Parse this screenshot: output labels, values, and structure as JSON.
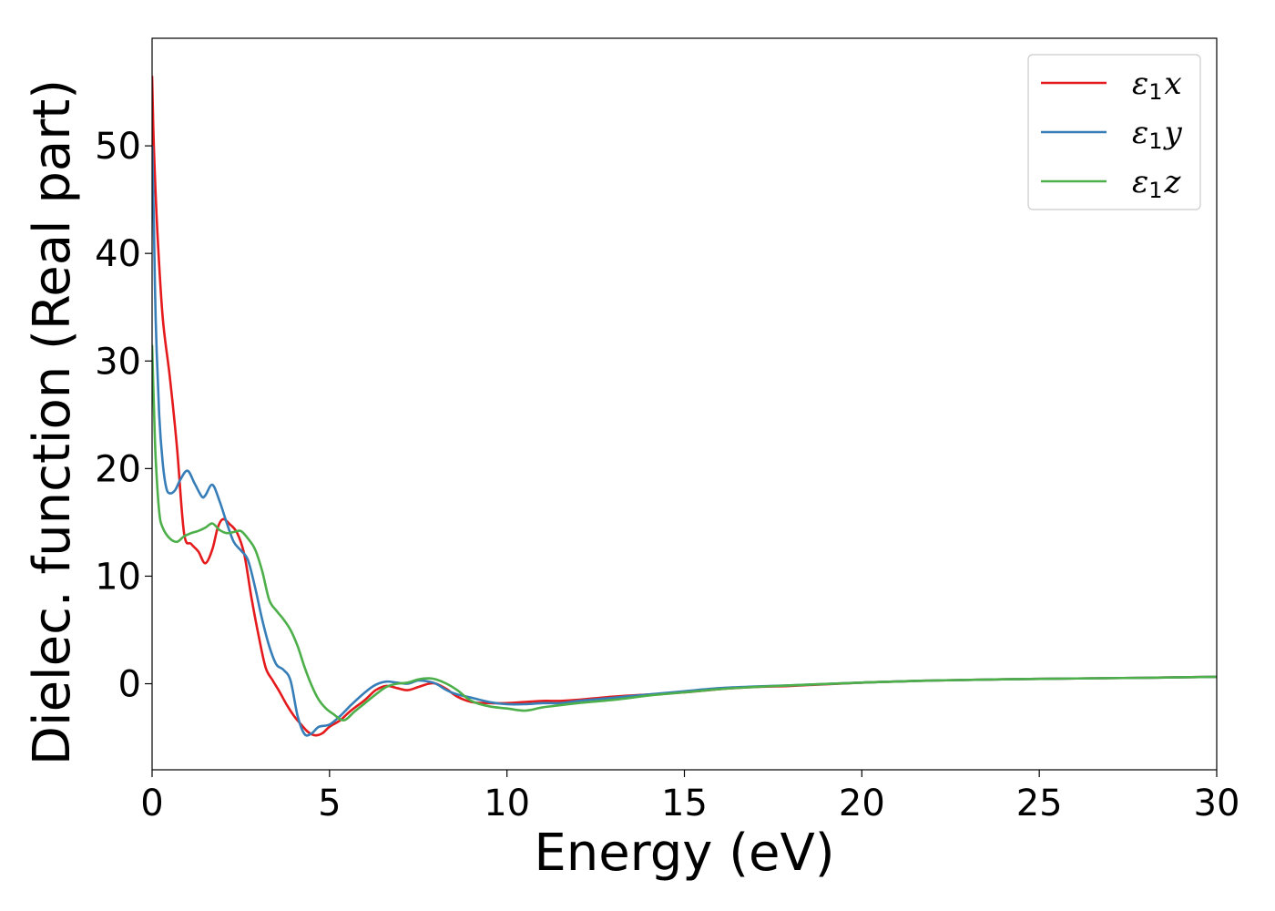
{
  "chart_data": {
    "type": "line",
    "xlabel": "Energy (eV)",
    "ylabel": "Dielec. function (Real part)",
    "xlim": [
      0,
      30
    ],
    "ylim": [
      -8,
      60
    ],
    "xticks": [
      0,
      5,
      10,
      15,
      20,
      25,
      30
    ],
    "yticks": [
      0,
      10,
      20,
      30,
      40,
      50
    ],
    "grid": false,
    "legend_position": "top-right",
    "series": [
      {
        "name": "ε1x",
        "legend_symbol": "ε",
        "legend_sub": "1",
        "legend_var": "x",
        "color": "#e41a1c",
        "x": [
          0.0,
          0.05,
          0.15,
          0.3,
          0.5,
          0.7,
          0.9,
          1.1,
          1.3,
          1.5,
          1.7,
          1.85,
          2.0,
          2.2,
          2.4,
          2.6,
          2.8,
          3.0,
          3.2,
          3.4,
          3.6,
          3.8,
          4.0,
          4.2,
          4.4,
          4.6,
          4.8,
          5.0,
          5.3,
          5.6,
          6.0,
          6.3,
          6.6,
          6.9,
          7.2,
          7.5,
          7.8,
          8.0,
          8.3,
          8.6,
          9.0,
          9.5,
          10.0,
          10.5,
          11.0,
          11.5,
          12.0,
          13.0,
          14.0,
          15.0,
          16.0,
          17.0,
          18.0,
          20.0,
          22.0,
          25.0,
          28.0,
          30.0
        ],
        "values": [
          56.5,
          50.0,
          42.0,
          34.0,
          28.5,
          22.0,
          14.0,
          13.0,
          12.3,
          11.2,
          12.5,
          14.5,
          15.3,
          14.8,
          14.0,
          12.0,
          8.0,
          4.5,
          1.5,
          0.3,
          -0.8,
          -2.0,
          -3.0,
          -3.8,
          -4.5,
          -4.8,
          -4.6,
          -4.0,
          -3.4,
          -2.5,
          -1.5,
          -0.6,
          -0.2,
          -0.4,
          -0.6,
          -0.3,
          0.0,
          0.0,
          -0.5,
          -1.2,
          -1.7,
          -1.8,
          -1.8,
          -1.7,
          -1.6,
          -1.6,
          -1.5,
          -1.2,
          -1.0,
          -0.8,
          -0.5,
          -0.3,
          -0.2,
          0.1,
          0.3,
          0.45,
          0.55,
          0.65
        ]
      },
      {
        "name": "ε1y",
        "legend_symbol": "ε",
        "legend_sub": "1",
        "legend_var": "y",
        "color": "#377eb8",
        "x": [
          0.0,
          0.05,
          0.1,
          0.2,
          0.3,
          0.4,
          0.5,
          0.65,
          0.8,
          1.0,
          1.2,
          1.4,
          1.5,
          1.7,
          1.9,
          2.1,
          2.3,
          2.5,
          2.7,
          2.9,
          3.1,
          3.3,
          3.5,
          3.7,
          3.9,
          4.1,
          4.3,
          4.5,
          4.7,
          5.0,
          5.3,
          5.6,
          6.0,
          6.3,
          6.6,
          6.9,
          7.2,
          7.5,
          7.8,
          8.0,
          8.3,
          8.6,
          9.0,
          9.5,
          10.0,
          10.5,
          11.0,
          11.5,
          12.0,
          13.0,
          14.0,
          15.0,
          16.0,
          17.0,
          18.0,
          20.0,
          22.0,
          25.0,
          28.0,
          30.0
        ],
        "values": [
          50.0,
          43.0,
          34.0,
          25.0,
          20.5,
          18.2,
          17.7,
          18.0,
          19.0,
          19.8,
          18.6,
          17.4,
          17.5,
          18.5,
          17.0,
          15.0,
          13.2,
          12.4,
          11.5,
          9.0,
          6.0,
          3.5,
          1.8,
          1.3,
          0.3,
          -3.0,
          -4.7,
          -4.6,
          -4.0,
          -3.8,
          -3.0,
          -2.0,
          -0.8,
          -0.1,
          0.2,
          0.1,
          0.0,
          0.3,
          0.2,
          0.0,
          -0.6,
          -1.0,
          -1.3,
          -1.7,
          -1.9,
          -1.9,
          -1.8,
          -1.8,
          -1.6,
          -1.3,
          -1.0,
          -0.7,
          -0.4,
          -0.25,
          -0.15,
          0.1,
          0.3,
          0.45,
          0.55,
          0.65
        ]
      },
      {
        "name": "ε1z",
        "legend_symbol": "ε",
        "legend_sub": "1",
        "legend_var": "z",
        "color": "#4daf4a",
        "x": [
          0.0,
          0.05,
          0.1,
          0.2,
          0.3,
          0.5,
          0.7,
          0.9,
          1.1,
          1.3,
          1.5,
          1.7,
          1.9,
          2.1,
          2.3,
          2.5,
          2.7,
          2.9,
          3.1,
          3.3,
          3.5,
          3.7,
          3.9,
          4.1,
          4.3,
          4.5,
          4.7,
          4.9,
          5.1,
          5.4,
          5.7,
          6.0,
          6.3,
          6.6,
          6.9,
          7.2,
          7.5,
          7.8,
          8.0,
          8.3,
          8.6,
          9.0,
          9.5,
          10.0,
          10.5,
          11.0,
          11.5,
          12.0,
          13.0,
          14.0,
          15.0,
          16.0,
          17.0,
          18.0,
          20.0,
          22.0,
          25.0,
          28.0,
          30.0
        ],
        "values": [
          31.5,
          26.0,
          21.0,
          16.0,
          14.5,
          13.5,
          13.2,
          13.7,
          14.0,
          14.2,
          14.5,
          14.9,
          14.3,
          14.0,
          14.1,
          14.2,
          13.5,
          12.5,
          10.5,
          7.8,
          6.8,
          6.0,
          5.0,
          3.5,
          1.5,
          -0.2,
          -1.5,
          -2.3,
          -2.8,
          -3.4,
          -2.6,
          -1.8,
          -1.0,
          -0.3,
          0.0,
          0.1,
          0.4,
          0.5,
          0.4,
          0.0,
          -0.6,
          -1.6,
          -2.1,
          -2.3,
          -2.5,
          -2.2,
          -2.0,
          -1.8,
          -1.5,
          -1.1,
          -0.8,
          -0.5,
          -0.3,
          -0.15,
          0.1,
          0.3,
          0.45,
          0.55,
          0.65
        ]
      }
    ]
  }
}
